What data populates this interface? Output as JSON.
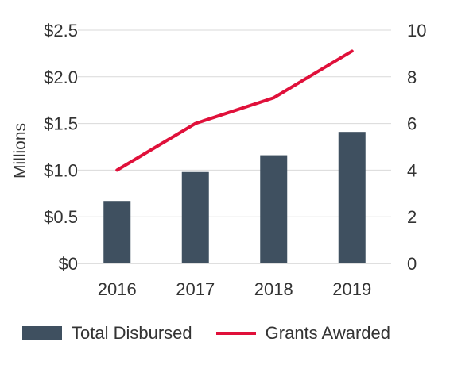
{
  "chart_data": {
    "type": "bar",
    "categories": [
      "2016",
      "2017",
      "2018",
      "2019"
    ],
    "ylabel": "Millions",
    "y_left": {
      "range": [
        0,
        2.5
      ],
      "ticks": [
        0,
        0.5,
        1.0,
        1.5,
        2.0,
        2.5
      ],
      "tick_labels": [
        "$0",
        "$0.5",
        "$1.0",
        "$1.5",
        "$2.0",
        "$2.5"
      ]
    },
    "y_right": {
      "range": [
        0,
        10
      ],
      "ticks": [
        0,
        2,
        4,
        6,
        8,
        10
      ],
      "tick_labels": [
        "0",
        "2",
        "4",
        "6",
        "8",
        "10"
      ]
    },
    "grid": true,
    "legend_position": "bottom",
    "series": [
      {
        "name": "Total Disbursed",
        "type": "bar",
        "axis": "left",
        "color": "#3f5060",
        "values": [
          0.67,
          0.98,
          1.16,
          1.41
        ]
      },
      {
        "name": "Grants Awarded",
        "type": "line",
        "axis": "right",
        "color": "#e0103a",
        "values": [
          4,
          6,
          7.1,
          9.1
        ]
      }
    ]
  }
}
